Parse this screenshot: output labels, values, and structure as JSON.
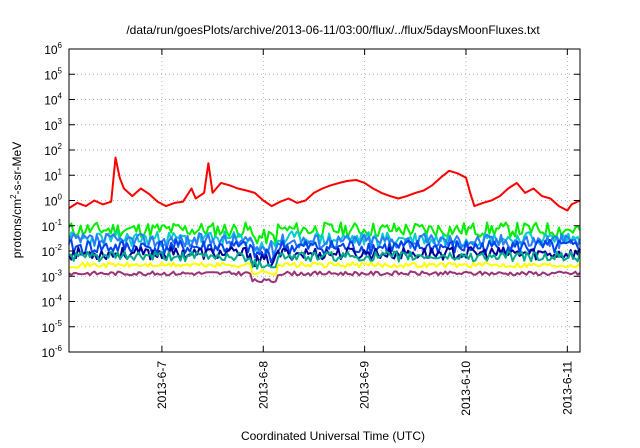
{
  "chart_data": {
    "type": "line",
    "title": "/data/run/goesPlots/archive/2013-06-11/03:00/flux/../flux/5daysMoonFluxes.txt",
    "xlabel": "Coordinated Universal Time (UTC)",
    "ylabel": "protons/cm²-s-sr-MeV",
    "ylabel_parts": {
      "pre": "protons/cm",
      "sup": "2",
      "post": "-s-sr-MeV"
    },
    "y_scale": "log",
    "ylim": [
      1e-06,
      1000000.0
    ],
    "y_ticks": [
      {
        "value": 1e-06,
        "base": "10",
        "exp": "-6"
      },
      {
        "value": 1e-05,
        "base": "10",
        "exp": "-5"
      },
      {
        "value": 0.0001,
        "base": "10",
        "exp": "-4"
      },
      {
        "value": 0.001,
        "base": "10",
        "exp": "-3"
      },
      {
        "value": 0.01,
        "base": "10",
        "exp": "-2"
      },
      {
        "value": 0.1,
        "base": "10",
        "exp": "-1"
      },
      {
        "value": 1.0,
        "base": "10",
        "exp": "0"
      },
      {
        "value": 10.0,
        "base": "10",
        "exp": "1"
      },
      {
        "value": 100.0,
        "base": "10",
        "exp": "2"
      },
      {
        "value": 1000.0,
        "base": "10",
        "exp": "3"
      },
      {
        "value": 10000.0,
        "base": "10",
        "exp": "4"
      },
      {
        "value": 100000.0,
        "base": "10",
        "exp": "5"
      },
      {
        "value": 1000000.0,
        "base": "10",
        "exp": "6"
      }
    ],
    "xlim": [
      "2013-06-06T02:00",
      "2013-06-11T03:00"
    ],
    "x_ticks": [
      {
        "value": "2013-06-07T00:00",
        "label": "2013-6-7"
      },
      {
        "value": "2013-06-08T00:00",
        "label": "2013-6-8"
      },
      {
        "value": "2013-06-09T00:00",
        "label": "2013-6-9"
      },
      {
        "value": "2013-06-10T00:00",
        "label": "2013-6-10"
      },
      {
        "value": "2013-06-11T00:00",
        "label": "2013-6-11"
      }
    ],
    "grid": true,
    "series": [
      {
        "color": "#ff0000",
        "points": [
          [
            "2013-06-06T02:00",
            0.5
          ],
          [
            "2013-06-06T04:00",
            0.8
          ],
          [
            "2013-06-06T06:00",
            0.6
          ],
          [
            "2013-06-06T08:00",
            1.0
          ],
          [
            "2013-06-06T10:00",
            0.7
          ],
          [
            "2013-06-06T12:00",
            0.9
          ],
          [
            "2013-06-06T13:00",
            50
          ],
          [
            "2013-06-06T14:00",
            8
          ],
          [
            "2013-06-06T15:00",
            3
          ],
          [
            "2013-06-06T17:00",
            1.5
          ],
          [
            "2013-06-06T19:00",
            3.0
          ],
          [
            "2013-06-06T21:00",
            1.8
          ],
          [
            "2013-06-06T23:00",
            0.9
          ],
          [
            "2013-06-07T01:00",
            0.6
          ],
          [
            "2013-06-07T03:00",
            0.8
          ],
          [
            "2013-06-07T05:00",
            0.9
          ],
          [
            "2013-06-07T07:00",
            3
          ],
          [
            "2013-06-07T08:00",
            1.2
          ],
          [
            "2013-06-07T10:00",
            2
          ],
          [
            "2013-06-07T11:00",
            30
          ],
          [
            "2013-06-07T12:00",
            2
          ],
          [
            "2013-06-07T14:00",
            5
          ],
          [
            "2013-06-07T16:00",
            4
          ],
          [
            "2013-06-07T18:00",
            3
          ],
          [
            "2013-06-07T20:00",
            2.5
          ],
          [
            "2013-06-07T22:00",
            2
          ],
          [
            "2013-06-08T00:00",
            1.0
          ],
          [
            "2013-06-08T02:00",
            0.6
          ],
          [
            "2013-06-08T04:00",
            0.9
          ],
          [
            "2013-06-08T06:00",
            1.2
          ],
          [
            "2013-06-08T08:00",
            0.8
          ],
          [
            "2013-06-08T10:00",
            1.0
          ],
          [
            "2013-06-08T12:00",
            2.0
          ],
          [
            "2013-06-08T14:00",
            3.0
          ],
          [
            "2013-06-08T16:00",
            4.0
          ],
          [
            "2013-06-08T18:00",
            5.0
          ],
          [
            "2013-06-08T20:00",
            6.0
          ],
          [
            "2013-06-08T22:00",
            6.5
          ],
          [
            "2013-06-09T00:00",
            5.0
          ],
          [
            "2013-06-09T02:00",
            3.0
          ],
          [
            "2013-06-09T04:00",
            2.0
          ],
          [
            "2013-06-09T06:00",
            1.5
          ],
          [
            "2013-06-09T08:00",
            1.2
          ],
          [
            "2013-06-09T10:00",
            1.5
          ],
          [
            "2013-06-09T12:00",
            2.0
          ],
          [
            "2013-06-09T14:00",
            2.5
          ],
          [
            "2013-06-09T16:00",
            4.0
          ],
          [
            "2013-06-09T18:00",
            8.0
          ],
          [
            "2013-06-09T20:00",
            15
          ],
          [
            "2013-06-09T22:00",
            12
          ],
          [
            "2013-06-10T00:00",
            8.0
          ],
          [
            "2013-06-10T01:00",
            2.0
          ],
          [
            "2013-06-10T02:00",
            0.6
          ],
          [
            "2013-06-10T04:00",
            0.8
          ],
          [
            "2013-06-10T06:00",
            1.0
          ],
          [
            "2013-06-10T08:00",
            1.5
          ],
          [
            "2013-06-10T10:00",
            3.0
          ],
          [
            "2013-06-10T12:00",
            5.0
          ],
          [
            "2013-06-10T14:00",
            2.0
          ],
          [
            "2013-06-10T16:00",
            3.0
          ],
          [
            "2013-06-10T18:00",
            1.5
          ],
          [
            "2013-06-10T20:00",
            1.2
          ],
          [
            "2013-06-10T22:00",
            0.6
          ],
          [
            "2013-06-11T00:00",
            0.4
          ],
          [
            "2013-06-11T01:00",
            0.7
          ],
          [
            "2013-06-11T03:00",
            1.0
          ]
        ]
      },
      {
        "color": "#00ee00",
        "base": 0.07,
        "amp": 0.3,
        "seed": 11
      },
      {
        "color": "#00cccc",
        "base": 0.03,
        "amp": 0.3,
        "seed": 23
      },
      {
        "color": "#2b7bff",
        "base": 0.025,
        "amp": 0.3,
        "seed": 37
      },
      {
        "color": "#0044ee",
        "base": 0.014,
        "amp": 0.3,
        "seed": 41
      },
      {
        "color": "#000099",
        "base": 0.008,
        "amp": 0.25,
        "seed": 53
      },
      {
        "color": "#00aa88",
        "base": 0.006,
        "amp": 0.2,
        "seed": 61
      },
      {
        "color": "#ffff00",
        "base": 0.0028,
        "amp": 0.1,
        "seed": 71
      },
      {
        "color": "#993377",
        "base": 0.0013,
        "amp": 0.08,
        "seed": 83
      }
    ]
  }
}
